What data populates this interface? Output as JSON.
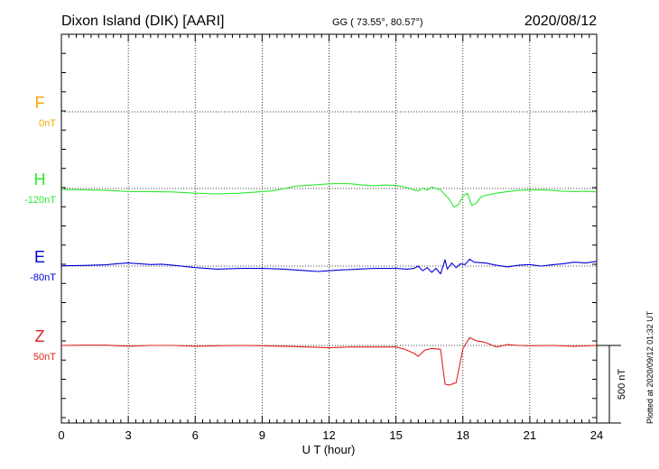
{
  "header": {
    "station": "Dixon Island (DIK)  [AARI]",
    "coords": "GG ( 73.55°,  80.57°)",
    "date": "2020/08/12"
  },
  "footer": {
    "plotted_at": "Plotted at 2020/09/12 01:32 UT"
  },
  "chart_data": {
    "type": "line",
    "xlabel": "U T (hour)",
    "xlim": [
      0,
      24
    ],
    "xticks": [
      "0",
      "3",
      "6",
      "9",
      "12",
      "15",
      "18",
      "21",
      "24"
    ],
    "scale_bar_label": "500 nT",
    "scale_bar_nT": 500,
    "series": [
      {
        "name": "F",
        "baseline_label": "0nT",
        "color": "#f5a700",
        "x": [],
        "y": []
      },
      {
        "name": "H",
        "baseline_label": "-120nT",
        "color": "#2ee82e",
        "x": [
          0,
          1,
          2,
          2.5,
          3,
          4,
          5,
          6,
          7,
          8,
          9,
          9.5,
          10,
          10.5,
          11,
          11.5,
          12,
          12.5,
          13,
          13.5,
          14,
          14.5,
          15,
          15.3,
          15.6,
          15.8,
          16,
          16.2,
          16.4,
          16.6,
          16.8,
          17,
          17.2,
          17.4,
          17.6,
          17.8,
          18,
          18.2,
          18.4,
          18.6,
          18.8,
          19,
          19.5,
          20,
          20.5,
          21,
          21.5,
          22,
          22.5,
          23,
          23.5,
          24
        ],
        "y": [
          -125,
          -128,
          -132,
          -135,
          -140,
          -140,
          -142,
          -150,
          -155,
          -150,
          -140,
          -135,
          -120,
          -105,
          -100,
          -95,
          -90,
          -88,
          -90,
          -98,
          -102,
          -98,
          -100,
          -108,
          -118,
          -130,
          -135,
          -118,
          -130,
          -110,
          -120,
          -130,
          -160,
          -190,
          -240,
          -225,
          -170,
          -150,
          -230,
          -215,
          -175,
          -165,
          -150,
          -140,
          -132,
          -130,
          -128,
          -132,
          -138,
          -140,
          -138,
          -142
        ]
      },
      {
        "name": "E",
        "baseline_label": "-80nT",
        "color": "#0000dd",
        "x": [
          0,
          1,
          2,
          2.5,
          3,
          3.5,
          4,
          4.5,
          5,
          6,
          7,
          8,
          9,
          10,
          11,
          11.5,
          12,
          12.5,
          13,
          14,
          15,
          15.5,
          15.8,
          16,
          16.2,
          16.4,
          16.6,
          16.8,
          17,
          17.2,
          17.3,
          17.5,
          17.7,
          17.9,
          18.1,
          18.3,
          18.5,
          19,
          19.5,
          20,
          20.5,
          21,
          21.5,
          22,
          22.5,
          23,
          23.5,
          24
        ],
        "y": [
          -78,
          -76,
          -72,
          -65,
          -60,
          -65,
          -70,
          -68,
          -75,
          -90,
          -100,
          -95,
          -95,
          -100,
          -110,
          -115,
          -110,
          -105,
          -102,
          -95,
          -95,
          -100,
          -95,
          -80,
          -110,
          -90,
          -120,
          -95,
          -130,
          -40,
          -100,
          -60,
          -90,
          -65,
          -70,
          -35,
          -55,
          -60,
          -75,
          -85,
          -75,
          -70,
          -80,
          -72,
          -65,
          -55,
          -60,
          -50
        ]
      },
      {
        "name": "Z",
        "baseline_label": "50nT",
        "color": "#e02020",
        "x": [
          0,
          1,
          2,
          3,
          4,
          5,
          6,
          7,
          8,
          9,
          10,
          11,
          12,
          13,
          14,
          15,
          15.4,
          15.8,
          16,
          16.3,
          16.6,
          17,
          17.2,
          17.4,
          17.7,
          18,
          18.3,
          18.6,
          19,
          19.5,
          20,
          20.5,
          21,
          22,
          23,
          24
        ],
        "y": [
          50,
          52,
          52,
          45,
          50,
          50,
          45,
          48,
          50,
          48,
          45,
          40,
          35,
          40,
          40,
          40,
          25,
          0,
          -20,
          20,
          30,
          25,
          -200,
          -205,
          -190,
          30,
          100,
          80,
          70,
          40,
          55,
          50,
          48,
          50,
          45,
          50
        ]
      }
    ]
  }
}
